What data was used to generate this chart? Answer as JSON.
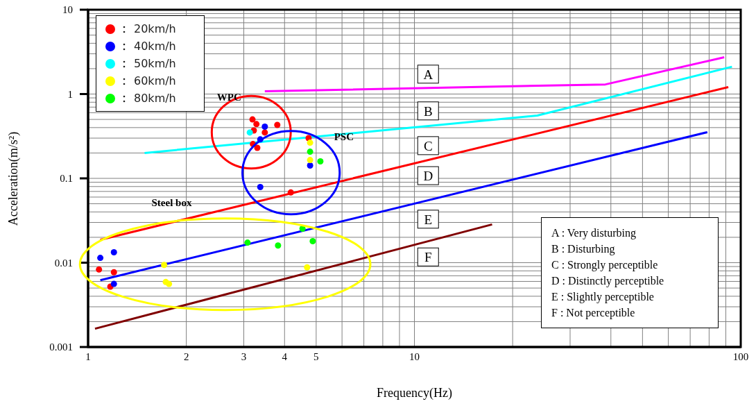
{
  "chart_data": {
    "type": "scatter",
    "xlabel": "Frequency(Hz)",
    "ylabel": "Acceleration(m/s²)",
    "log": "xy",
    "grid": true,
    "legend": "top left",
    "marker": "circle",
    "xlim": [
      1,
      100
    ],
    "ylim": [
      0.001,
      10
    ],
    "xticks": [
      1,
      2,
      3,
      4,
      5,
      {
        "value": 6,
        "label": null
      },
      {
        "value": 7,
        "label": null
      },
      {
        "value": 8,
        "label": null
      },
      {
        "value": 9,
        "label": null
      },
      10,
      {
        "value": 20,
        "label": null
      },
      {
        "value": 30,
        "label": null
      },
      {
        "value": 40,
        "label": null
      },
      {
        "value": 50,
        "label": null
      },
      {
        "value": 60,
        "label": null
      },
      {
        "value": 70,
        "label": null
      },
      {
        "value": 80,
        "label": null
      },
      {
        "value": 90,
        "label": null
      },
      100
    ],
    "yticks": [
      0.001,
      {
        "value": 0.002,
        "label": null
      },
      {
        "value": 0.003,
        "label": null
      },
      {
        "value": 0.004,
        "label": null
      },
      {
        "value": 0.005,
        "label": null
      },
      {
        "value": 0.006,
        "label": null
      },
      {
        "value": 0.007,
        "label": null
      },
      {
        "value": 0.008,
        "label": null
      },
      {
        "value": 0.009,
        "label": null
      },
      0.01,
      {
        "value": 0.02,
        "label": null
      },
      {
        "value": 0.03,
        "label": null
      },
      {
        "value": 0.04,
        "label": null
      },
      {
        "value": 0.05,
        "label": null
      },
      {
        "value": 0.06,
        "label": null
      },
      {
        "value": 0.07,
        "label": null
      },
      {
        "value": 0.08,
        "label": null
      },
      {
        "value": 0.09,
        "label": null
      },
      0.1,
      {
        "value": 0.2,
        "label": null
      },
      {
        "value": 0.3,
        "label": null
      },
      {
        "value": 0.4,
        "label": null
      },
      {
        "value": 0.5,
        "label": null
      },
      {
        "value": 0.6,
        "label": null
      },
      {
        "value": 0.7,
        "label": null
      },
      {
        "value": 0.8,
        "label": null
      },
      {
        "value": 0.9,
        "label": null
      },
      1,
      {
        "value": 2,
        "label": null
      },
      {
        "value": 3,
        "label": null
      },
      {
        "value": 4,
        "label": null
      },
      {
        "value": 5,
        "label": null
      },
      {
        "value": 6,
        "label": null
      },
      {
        "value": 7,
        "label": null
      },
      {
        "value": 8,
        "label": null
      },
      {
        "value": 9,
        "label": null
      },
      10
    ],
    "series": [
      {
        "name": "20km/h",
        "color": "#ff0000",
        "x": [
          1.08,
          1.2,
          1.17,
          3.19,
          3.28,
          3.22,
          3.48,
          3.8,
          3.2,
          3.3,
          4.18,
          4.74
        ],
        "values": [
          0.0083,
          0.0077,
          0.0052,
          0.5,
          0.44,
          0.37,
          0.35,
          0.43,
          0.255,
          0.23,
          0.068,
          0.3
        ]
      },
      {
        "name": "40km/h",
        "color": "#0000ff",
        "x": [
          1.09,
          1.2,
          1.2,
          3.48,
          3.37,
          3.37,
          4.79
        ],
        "values": [
          0.0114,
          0.0133,
          0.0056,
          0.41,
          0.29,
          0.079,
          0.142
        ]
      },
      {
        "name": "50km/h",
        "color": "#00ffff",
        "x": [
          3.13
        ],
        "values": [
          0.35
        ]
      },
      {
        "name": "60km/h",
        "color": "#ffff00",
        "x": [
          1.71,
          1.73,
          1.77,
          4.69,
          4.79,
          4.79
        ],
        "values": [
          0.0094,
          0.0059,
          0.0056,
          0.0088,
          0.265,
          0.165
        ]
      },
      {
        "name": "80km/h",
        "color": "#00ff00",
        "x": [
          3.08,
          3.82,
          4.54,
          4.88,
          4.79,
          5.15
        ],
        "values": [
          0.0173,
          0.016,
          0.0253,
          0.018,
          0.207,
          0.159
        ]
      },
      {
        "type": "line",
        "marker": "none",
        "color": "#ff00ff",
        "x": [
          3.48,
          38.5,
          89
        ],
        "values": [
          1.08,
          1.3,
          2.73
        ]
      },
      {
        "type": "line",
        "marker": "none",
        "color": "#00ffff",
        "x": [
          1.49,
          23.8,
          94
        ],
        "values": [
          0.2,
          0.555,
          2.11
        ]
      },
      {
        "type": "line",
        "marker": "none",
        "color": "#ff0000",
        "x": [
          1.09,
          91.6
        ],
        "values": [
          0.0187,
          1.21
        ]
      },
      {
        "type": "line",
        "marker": "none",
        "color": "#0000ff",
        "x": [
          1.09,
          79
        ],
        "values": [
          0.0062,
          0.353
        ]
      },
      {
        "type": "line",
        "marker": "none",
        "color": "#800000",
        "x": [
          1.05,
          17.3
        ],
        "values": [
          0.00165,
          0.0284
        ]
      }
    ],
    "annotations": [
      "A",
      "B",
      "C",
      "D",
      "E",
      "F",
      "WPC",
      "PSC",
      "Steel box",
      "A : Very disturbing",
      "B : Disturbing",
      "C : Strongly perceptible",
      "D : Distinctly perceptible",
      "E : Slightly perceptible",
      "F : Not perceptible"
    ]
  }
}
